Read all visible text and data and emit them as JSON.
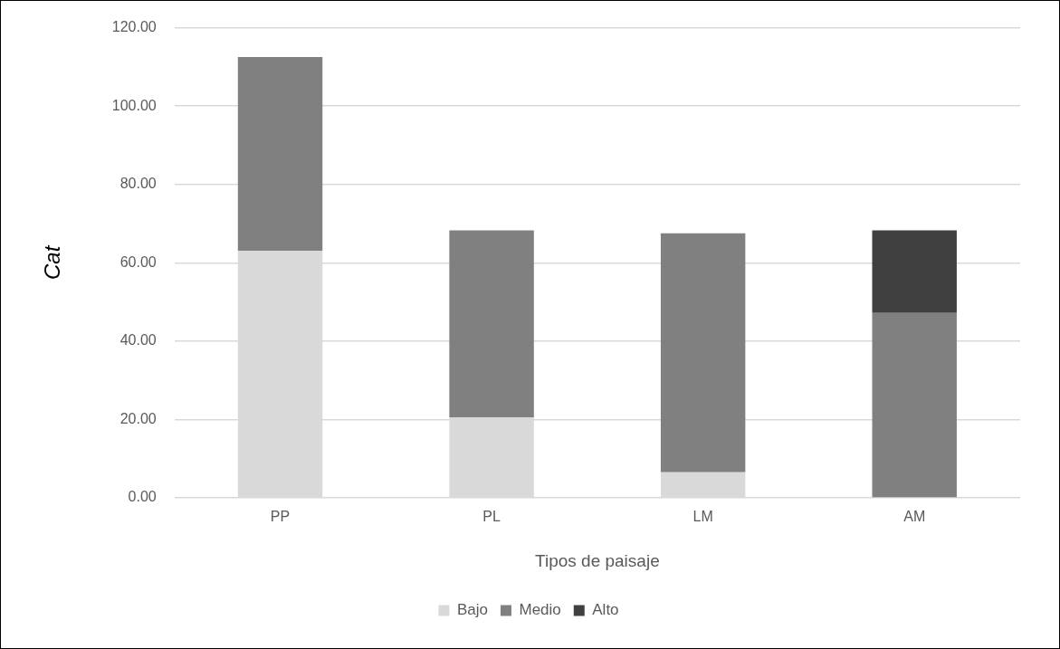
{
  "chart_data": {
    "type": "bar",
    "stacked": true,
    "xlabel": "Tipos de paisaje",
    "ylabel": "Cat",
    "categories": [
      "PP",
      "PL",
      "LM",
      "AM"
    ],
    "series": [
      {
        "name": "Bajo",
        "color": "#d9d9d9",
        "values": [
          63,
          20.5,
          6.5,
          0
        ]
      },
      {
        "name": "Medio",
        "color": "#808080",
        "values": [
          49.5,
          47.8,
          61,
          47.2
        ]
      },
      {
        "name": "Alto",
        "color": "#404040",
        "values": [
          0,
          0,
          0,
          21.1
        ]
      }
    ],
    "ylim": [
      0,
      120
    ],
    "yticks": [
      {
        "value": 0,
        "label": "0.00"
      },
      {
        "value": 20,
        "label": "20.00"
      },
      {
        "value": 40,
        "label": "40.00"
      },
      {
        "value": 60,
        "label": "60.00"
      },
      {
        "value": 80,
        "label": "80.00"
      },
      {
        "value": 100,
        "label": "100.00"
      },
      {
        "value": 120,
        "label": "120.00"
      }
    ],
    "grid": "y",
    "legend": "bottom"
  }
}
